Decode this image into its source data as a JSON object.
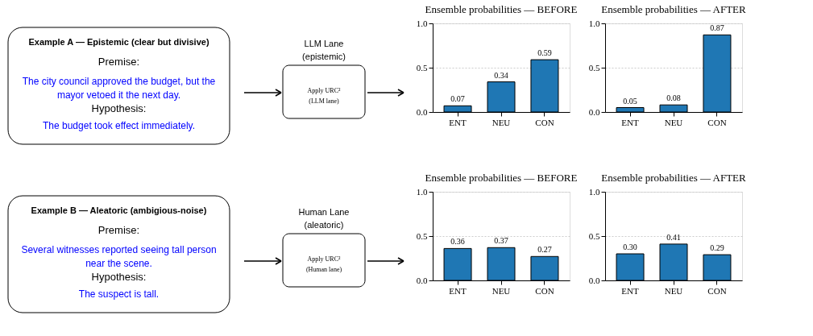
{
  "chart_data": [
    {
      "type": "other",
      "title": "Example A — Epistemic (clear but divisive)",
      "annotations": [
        "Premise:",
        "The city council approved the budget, but the\nmayor vetoed it the next day.",
        "Hypothesis:",
        "The budget took effect immediately."
      ]
    },
    {
      "type": "other",
      "title": "LLM Lane\n(epistemic)",
      "annotations": [
        "Apply URC²\n(LLM lane)"
      ]
    },
    {
      "type": "bar",
      "title": "Ensemble probabilities — BEFORE",
      "categories": [
        "ENT",
        "NEU",
        "CON"
      ],
      "values": [
        0.07,
        0.34,
        0.59
      ],
      "color": "#1f77b4",
      "ylim": [
        0,
        1
      ],
      "yticks": [
        {
          "value": 0,
          "label": "0.0"
        },
        {
          "value": 0.5,
          "label": "0.5"
        },
        {
          "value": 1,
          "label": "1.0"
        }
      ],
      "grid": "y",
      "data_labels": true
    },
    {
      "type": "bar",
      "title": "Ensemble probabilities — AFTER",
      "categories": [
        "ENT",
        "NEU",
        "CON"
      ],
      "values": [
        0.05,
        0.08,
        0.87
      ],
      "color": "#1f77b4",
      "ylim": [
        0,
        1
      ],
      "yticks": [
        {
          "value": 0,
          "label": "0.0"
        },
        {
          "value": 0.5,
          "label": "0.5"
        },
        {
          "value": 1,
          "label": "1.0"
        }
      ],
      "grid": "y",
      "data_labels": true
    },
    {
      "type": "other",
      "title": "Example B — Aleatoric (ambigious-noise)",
      "annotations": [
        "Premise:",
        "Several witnesses reported seeing tall person\nnear the scene.",
        "Hypothesis:",
        "The suspect is tall."
      ]
    },
    {
      "type": "other",
      "title": "Human Lane\n(aleatoric)",
      "annotations": [
        "Apply URC²\n(Human lane)"
      ]
    },
    {
      "type": "bar",
      "title": "Ensemble probabilities — BEFORE",
      "categories": [
        "ENT",
        "NEU",
        "CON"
      ],
      "values": [
        0.36,
        0.37,
        0.27
      ],
      "color": "#1f77b4",
      "ylim": [
        0,
        1
      ],
      "yticks": [
        {
          "value": 0,
          "label": "0.0"
        },
        {
          "value": 0.5,
          "label": "0.5"
        },
        {
          "value": 1,
          "label": "1.0"
        }
      ],
      "grid": "y",
      "data_labels": true
    },
    {
      "type": "bar",
      "title": "Ensemble probabilities — AFTER",
      "categories": [
        "ENT",
        "NEU",
        "CON"
      ],
      "values": [
        0.3,
        0.41,
        0.29
      ],
      "value_labels": [
        "0.30",
        "0.41",
        "0.29"
      ],
      "color": "#1f77b4",
      "ylim": [
        0,
        1
      ],
      "yticks": [
        {
          "value": 0,
          "label": "0.0"
        },
        {
          "value": 0.5,
          "label": "0.5"
        },
        {
          "value": 1,
          "label": "1.0"
        }
      ],
      "grid": "y"
    }
  ]
}
